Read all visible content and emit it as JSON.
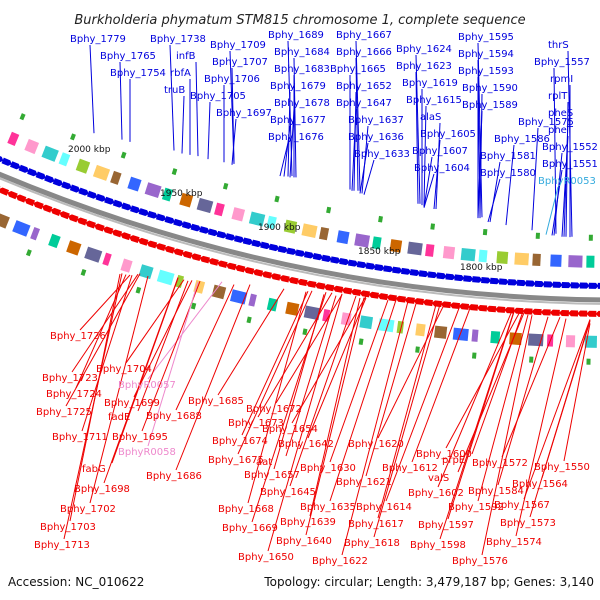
{
  "title": "Burkholderia phymatum STM815 chromosome 1, complete sequence",
  "accession": "Accession: NC_010622",
  "summary": "Topology: circular; Length: 3,479,187 bp; Genes: 3,140",
  "colors": {
    "forward": "#0000dd",
    "reverse": "#ee0000",
    "rna_forward": "#33aadd",
    "rna_reverse": "#ee88cc",
    "backbone": "#888888"
  },
  "scale_ticks": [
    "2000 kbp",
    "1950 kbp",
    "1900 kbp",
    "1850 kbp",
    "1800 kbp"
  ],
  "top_labels": [
    {
      "text": "Bphy_1779",
      "type": "cds"
    },
    {
      "text": "Bphy_1765",
      "type": "cds"
    },
    {
      "text": "Bphy_1754",
      "type": "cds"
    },
    {
      "text": "Bphy_1738",
      "type": "cds"
    },
    {
      "text": "infB",
      "type": "cds"
    },
    {
      "text": "rbfA",
      "type": "cds"
    },
    {
      "text": "truB",
      "type": "cds"
    },
    {
      "text": "Bphy_1709",
      "type": "cds"
    },
    {
      "text": "Bphy_1707",
      "type": "cds"
    },
    {
      "text": "Bphy_1706",
      "type": "cds"
    },
    {
      "text": "Bphy_1705",
      "type": "cds"
    },
    {
      "text": "Bphy_1697",
      "type": "cds"
    },
    {
      "text": "Bphy_1689",
      "type": "cds"
    },
    {
      "text": "Bphy_1684",
      "type": "cds"
    },
    {
      "text": "Bphy_1683",
      "type": "cds"
    },
    {
      "text": "Bphy_1679",
      "type": "cds"
    },
    {
      "text": "Bphy_1678",
      "type": "cds"
    },
    {
      "text": "Bphy_1677",
      "type": "cds"
    },
    {
      "text": "Bphy_1676",
      "type": "cds"
    },
    {
      "text": "Bphy_1667",
      "type": "cds"
    },
    {
      "text": "Bphy_1666",
      "type": "cds"
    },
    {
      "text": "Bphy_1665",
      "type": "cds"
    },
    {
      "text": "Bphy_1652",
      "type": "cds"
    },
    {
      "text": "Bphy_1647",
      "type": "cds"
    },
    {
      "text": "Bphy_1637",
      "type": "cds"
    },
    {
      "text": "Bphy_1636",
      "type": "cds"
    },
    {
      "text": "Bphy_1633",
      "type": "cds"
    },
    {
      "text": "Bphy_1624",
      "type": "cds"
    },
    {
      "text": "Bphy_1623",
      "type": "cds"
    },
    {
      "text": "Bphy_1619",
      "type": "cds"
    },
    {
      "text": "Bphy_1615",
      "type": "cds"
    },
    {
      "text": "alaS",
      "type": "cds"
    },
    {
      "text": "Bphy_1605",
      "type": "cds"
    },
    {
      "text": "Bphy_1607",
      "type": "cds"
    },
    {
      "text": "Bphy_1604",
      "type": "cds"
    },
    {
      "text": "Bphy_1595",
      "type": "cds"
    },
    {
      "text": "Bphy_1594",
      "type": "cds"
    },
    {
      "text": "Bphy_1593",
      "type": "cds"
    },
    {
      "text": "Bphy_1590",
      "type": "cds"
    },
    {
      "text": "Bphy_1589",
      "type": "cds"
    },
    {
      "text": "Bphy_1575",
      "type": "cds"
    },
    {
      "text": "Bphy_1586",
      "type": "cds"
    },
    {
      "text": "Bphy_1581",
      "type": "cds"
    },
    {
      "text": "Bphy_1580",
      "type": "cds"
    },
    {
      "text": "thrS",
      "type": "cds"
    },
    {
      "text": "Bphy_1557",
      "type": "cds"
    },
    {
      "text": "rpmI",
      "type": "cds"
    },
    {
      "text": "rplT",
      "type": "cds"
    },
    {
      "text": "pheS",
      "type": "cds"
    },
    {
      "text": "pheT",
      "type": "cds"
    },
    {
      "text": "Bphy_1552",
      "type": "cds"
    },
    {
      "text": "Bphy_1551",
      "type": "cds"
    },
    {
      "text": "BphyR0053",
      "type": "rna"
    }
  ],
  "bottom_labels": [
    {
      "text": "Bphy_1726",
      "type": "cds"
    },
    {
      "text": "Bphy_1704",
      "type": "cds"
    },
    {
      "text": "Bphy_1723",
      "type": "cds"
    },
    {
      "text": "BphyR0057",
      "type": "rna"
    },
    {
      "text": "Bphy_1724",
      "type": "cds"
    },
    {
      "text": "Bphy_1699",
      "type": "cds"
    },
    {
      "text": "Bphy_1685",
      "type": "cds"
    },
    {
      "text": "Bphy_1725",
      "type": "cds"
    },
    {
      "text": "fadE",
      "type": "cds"
    },
    {
      "text": "Bphy_1688",
      "type": "cds"
    },
    {
      "text": "Bphy_1672",
      "type": "cds"
    },
    {
      "text": "Bphy_1673",
      "type": "cds"
    },
    {
      "text": "Bphy_1711",
      "type": "cds"
    },
    {
      "text": "Bphy_1695",
      "type": "cds"
    },
    {
      "text": "Bphy_1674",
      "type": "cds"
    },
    {
      "text": "Bphy_1654",
      "type": "cds"
    },
    {
      "text": "BphyR0058",
      "type": "rna"
    },
    {
      "text": "Bphy_1642",
      "type": "cds"
    },
    {
      "text": "Bphy_1620",
      "type": "cds"
    },
    {
      "text": "Bphy_1600",
      "type": "cds"
    },
    {
      "text": "prpE",
      "type": "cds"
    },
    {
      "text": "Bphy_1572",
      "type": "cds"
    },
    {
      "text": "Bphy_1550",
      "type": "cds"
    },
    {
      "text": "Bphy_1675",
      "type": "cds"
    },
    {
      "text": "aat",
      "type": "cds"
    },
    {
      "text": "Bphy_1612",
      "type": "cds"
    },
    {
      "text": "fabG",
      "type": "cds"
    },
    {
      "text": "Bphy_1686",
      "type": "cds"
    },
    {
      "text": "Bphy_1657",
      "type": "cds"
    },
    {
      "text": "Bphy_1630",
      "type": "cds"
    },
    {
      "text": "valS",
      "type": "cds"
    },
    {
      "text": "Bphy_1698",
      "type": "cds"
    },
    {
      "text": "Bphy_1621",
      "type": "cds"
    },
    {
      "text": "Bphy_1564",
      "type": "cds"
    },
    {
      "text": "Bphy_1645",
      "type": "cds"
    },
    {
      "text": "Bphy_1602",
      "type": "cds"
    },
    {
      "text": "Bphy_1584",
      "type": "cds"
    },
    {
      "text": "Bphy_1668",
      "type": "cds"
    },
    {
      "text": "Bphy_1635",
      "type": "cds"
    },
    {
      "text": "Bphy_1614",
      "type": "cds"
    },
    {
      "text": "Bphy_1592",
      "type": "cds"
    },
    {
      "text": "Bphy_1702",
      "type": "cds"
    },
    {
      "text": "Bphy_1567",
      "type": "cds"
    },
    {
      "text": "Bphy_1669",
      "type": "cds"
    },
    {
      "text": "Bphy_1639",
      "type": "cds"
    },
    {
      "text": "Bphy_1617",
      "type": "cds"
    },
    {
      "text": "Bphy_1597",
      "type": "cds"
    },
    {
      "text": "Bphy_1573",
      "type": "cds"
    },
    {
      "text": "Bphy_1703",
      "type": "cds"
    },
    {
      "text": "Bphy_1640",
      "type": "cds"
    },
    {
      "text": "Bphy_1618",
      "type": "cds"
    },
    {
      "text": "Bphy_1598",
      "type": "cds"
    },
    {
      "text": "Bphy_1574",
      "type": "cds"
    },
    {
      "text": "Bphy_1713",
      "type": "cds"
    },
    {
      "text": "Bphy_1622",
      "type": "cds"
    },
    {
      "text": "Bphy_1650",
      "type": "cds"
    },
    {
      "text": "Bphy_1576",
      "type": "cds"
    }
  ]
}
